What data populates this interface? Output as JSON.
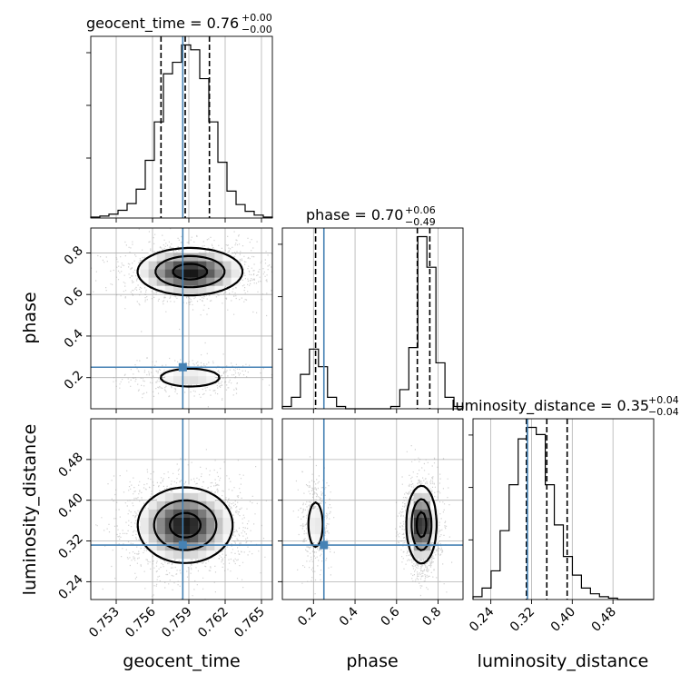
{
  "chart_data": {
    "type": "corner",
    "parameters": [
      "geocent_time",
      "phase",
      "luminosity_distance"
    ],
    "axis_labels": [
      "geocent_time",
      "phase",
      "luminosity_distance"
    ],
    "truths": {
      "geocent_time": 0.7585,
      "phase": 0.25,
      "luminosity_distance": 0.312
    },
    "truth_color": "#4682b4",
    "titles": [
      {
        "param": "geocent_time",
        "prefix": "geocent_time = 0.76",
        "up": "+0.00",
        "down": "−0.00"
      },
      {
        "param": "phase",
        "prefix": "phase = 0.70",
        "up": "+0.06",
        "down": "−0.49"
      },
      {
        "param": "luminosity_distance",
        "prefix": "luminosity_distance = 0.35",
        "up": "+0.04",
        "down": "−0.04"
      }
    ],
    "ranges": {
      "geocent_time": [
        0.7509,
        0.7659
      ],
      "phase": [
        0.05,
        0.92
      ],
      "luminosity_distance": [
        0.205,
        0.56
      ]
    },
    "ticks": {
      "geocent_time": [
        "0.753",
        "0.756",
        "0.759",
        "0.762",
        "0.765"
      ],
      "phase": [
        "0.2",
        "0.4",
        "0.6",
        "0.8"
      ],
      "luminosity_distance": [
        "0.24",
        "0.32",
        "0.40",
        "0.48"
      ]
    },
    "quantiles": {
      "geocent_time": [
        0.7567,
        0.7587,
        0.7607
      ],
      "phase": [
        0.21,
        0.7,
        0.76
      ],
      "luminosity_distance": [
        0.31,
        0.35,
        0.39
      ]
    },
    "histograms": {
      "geocent_time": {
        "bins": [
          0.7509,
          0.75165,
          0.7524,
          0.75315,
          0.7539,
          0.75465,
          0.7554,
          0.75615,
          0.7569,
          0.75765,
          0.7584,
          0.75915,
          0.7599,
          0.76065,
          0.7614,
          0.76215,
          0.7629,
          0.76365,
          0.7644,
          0.76515,
          0.7659
        ],
        "counts": [
          1,
          2,
          4,
          8,
          15,
          30,
          60,
          100,
          150,
          162,
          180,
          175,
          145,
          100,
          58,
          28,
          14,
          7,
          3,
          1
        ]
      },
      "phase": {
        "bins": [
          0.05,
          0.0935,
          0.137,
          0.1805,
          0.224,
          0.2675,
          0.311,
          0.3545,
          0.398,
          0.4415,
          0.485,
          0.5285,
          0.572,
          0.6155,
          0.659,
          0.7025,
          0.746,
          0.7895,
          0.833,
          0.8765,
          0.92
        ],
        "counts": [
          3,
          15,
          45,
          78,
          55,
          15,
          3,
          0,
          0,
          0,
          0,
          0,
          3,
          25,
          80,
          225,
          185,
          60,
          15,
          3
        ]
      },
      "luminosity_distance": {
        "bins": [
          0.205,
          0.22275,
          0.2405,
          0.25825,
          0.276,
          0.29375,
          0.3115,
          0.32925,
          0.347,
          0.36475,
          0.3825,
          0.40025,
          0.418,
          0.43575,
          0.4535,
          0.47125,
          0.489,
          0.50675,
          0.5245,
          0.54225,
          0.56
        ],
        "counts": [
          2,
          8,
          20,
          48,
          80,
          112,
          120,
          115,
          80,
          52,
          30,
          17,
          8,
          4,
          2,
          1,
          0,
          0,
          0,
          0
        ]
      }
    },
    "density_modes": [
      {
        "x": "geocent_time",
        "y": "phase",
        "modes": [
          {
            "cx": 0.7591,
            "cy": 0.71,
            "sx": 0.0021,
            "sy": 0.055,
            "weight": 0.8
          },
          {
            "cx": 0.7591,
            "cy": 0.2,
            "sx": 0.002,
            "sy": 0.035,
            "weight": 0.2
          }
        ]
      },
      {
        "x": "geocent_time",
        "y": "luminosity_distance",
        "modes": [
          {
            "cx": 0.7587,
            "cy": 0.351,
            "sx": 0.0019,
            "sy": 0.036,
            "weight": 1.0
          }
        ]
      },
      {
        "x": "phase",
        "y": "luminosity_distance",
        "modes": [
          {
            "cx": 0.72,
            "cy": 0.352,
            "sx": 0.035,
            "sy": 0.037,
            "weight": 0.8
          },
          {
            "cx": 0.21,
            "cy": 0.352,
            "sx": 0.028,
            "sy": 0.036,
            "weight": 0.2
          }
        ]
      }
    ],
    "contour_levels": [
      0.12,
      0.4,
      0.8
    ],
    "grid": true
  }
}
